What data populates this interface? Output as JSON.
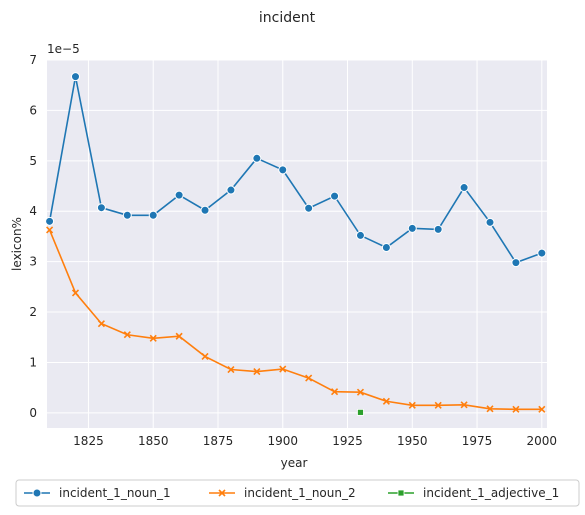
{
  "chart_data": {
    "type": "line",
    "title": "incident",
    "xlabel": "year",
    "ylabel": "lexicon%",
    "y_offset_label": "1e−5",
    "xlim": [
      1809,
      2002
    ],
    "ylim": [
      -0.3,
      7.0
    ],
    "x_ticks": [
      1825,
      1850,
      1875,
      1900,
      1925,
      1950,
      1975,
      2000
    ],
    "y_ticks": [
      0,
      1,
      2,
      3,
      4,
      5,
      6,
      7
    ],
    "grid": true,
    "legend_position": "bottom",
    "series": [
      {
        "name": "incident_1_noun_1",
        "color": "#1f77b4",
        "marker": "circle",
        "x": [
          1810,
          1820,
          1830,
          1840,
          1850,
          1860,
          1870,
          1880,
          1890,
          1900,
          1910,
          1920,
          1930,
          1940,
          1950,
          1960,
          1970,
          1980,
          1990,
          2000
        ],
        "y": [
          3.8,
          6.67,
          4.07,
          3.92,
          3.92,
          4.32,
          4.02,
          4.42,
          5.05,
          4.82,
          4.06,
          4.3,
          3.52,
          3.28,
          3.66,
          3.64,
          4.47,
          3.78,
          2.98,
          3.17
        ]
      },
      {
        "name": "incident_1_noun_2",
        "color": "#ff7f0e",
        "marker": "x",
        "x": [
          1810,
          1820,
          1830,
          1840,
          1850,
          1860,
          1870,
          1880,
          1890,
          1900,
          1910,
          1920,
          1930,
          1940,
          1950,
          1960,
          1970,
          1980,
          1990,
          2000
        ],
        "y": [
          3.63,
          2.38,
          1.77,
          1.55,
          1.48,
          1.52,
          1.12,
          0.86,
          0.82,
          0.87,
          0.69,
          0.42,
          0.41,
          0.23,
          0.15,
          0.15,
          0.16,
          0.08,
          0.07,
          0.07
        ]
      },
      {
        "name": "incident_1_adjective_1",
        "color": "#2ca02c",
        "marker": "square",
        "x": [
          1930
        ],
        "y": [
          0.01
        ]
      }
    ]
  }
}
